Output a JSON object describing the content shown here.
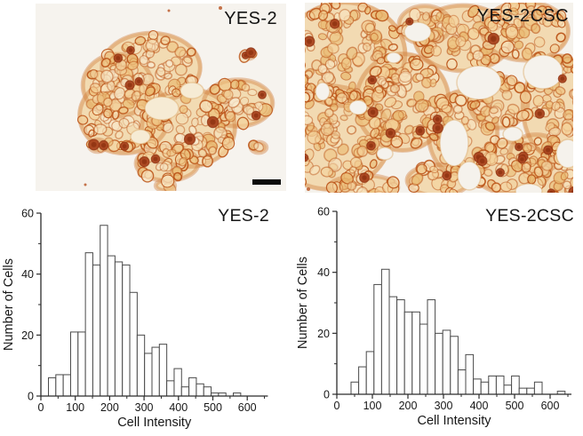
{
  "photos": {
    "left": {
      "label": "YES-2",
      "scale_bar": true
    },
    "right": {
      "label": "YES-2CSC",
      "scale_bar": false
    }
  },
  "colors": {
    "page_background": "#ffffff",
    "text": "#171717",
    "axis": "#2b2b2b",
    "bar_fill": "#ffffff",
    "bar_stroke": "#4a4a4a",
    "photo_background": "#f6f3ee",
    "cell_fill": "#f0c488",
    "cell_outline": "#bc5519",
    "dark_cell_color": "#a9431d",
    "scale_bar_color": "#0a0a0a"
  },
  "chart_data": [
    {
      "type": "histogram",
      "title": "YES-2",
      "xlabel": "Cell Intensity",
      "ylabel": "Number of Cells",
      "bin_start": 22,
      "bin_width": 21.5,
      "counts": [
        6,
        7,
        7,
        21,
        21,
        47,
        43,
        56,
        46,
        44,
        43,
        34,
        20,
        14,
        16,
        17,
        5,
        9,
        3,
        6,
        4,
        3,
        1,
        1,
        0,
        1
      ],
      "xlim": [
        0,
        660
      ],
      "ylim": [
        0,
        60
      ],
      "x_major_ticks": [
        0,
        100,
        200,
        300,
        400,
        500,
        600
      ],
      "x_minor_step": 50,
      "y_major_ticks": [
        0,
        20,
        40,
        60
      ],
      "y_minor_step": 10,
      "grid": false,
      "legend": false
    },
    {
      "type": "histogram",
      "title": "YES-2CSC",
      "xlabel": "Cell Intensity",
      "ylabel": "Number of Cells",
      "bin_start": 40,
      "bin_width": 21.5,
      "counts": [
        4,
        9,
        14,
        36,
        41,
        32,
        31,
        27,
        27,
        23,
        31,
        20,
        21,
        19,
        8,
        13,
        5,
        4,
        6,
        6,
        3,
        6,
        2,
        2,
        4,
        0,
        0,
        1
      ],
      "xlim": [
        0,
        660
      ],
      "ylim": [
        0,
        60
      ],
      "x_major_ticks": [
        0,
        100,
        200,
        300,
        400,
        500,
        600
      ],
      "x_minor_step": 50,
      "y_major_ticks": [
        0,
        20,
        40,
        60
      ],
      "y_minor_step": 10,
      "grid": false,
      "legend": false
    }
  ]
}
